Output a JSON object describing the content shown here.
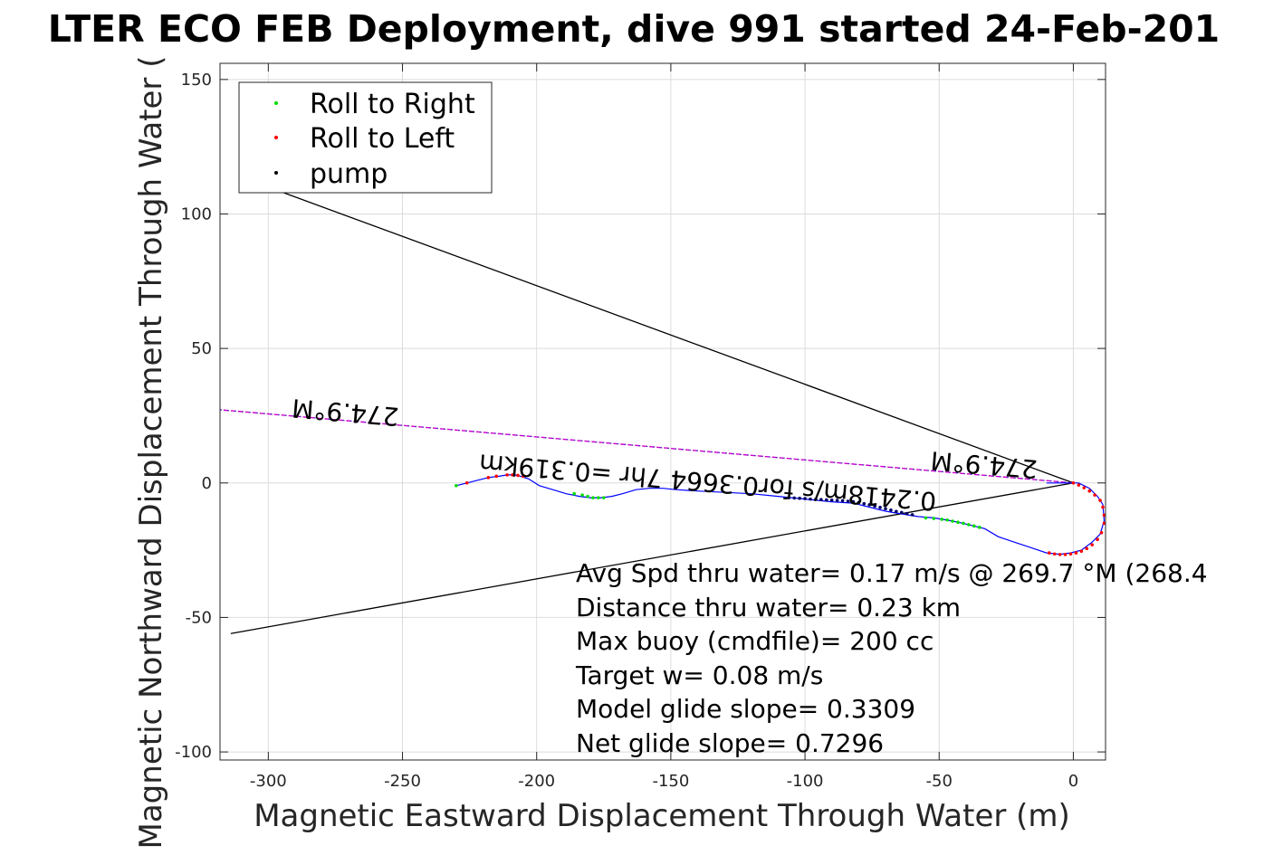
{
  "chart_data": {
    "type": "line",
    "title": "LTER ECO FEB Deployment, dive 991 started 24-Feb-201",
    "xlabel": "Magnetic Eastward Displacement Through Water (m)",
    "ylabel": "Magnetic Northward Displacement Through Water (",
    "xlim": [
      -318,
      12
    ],
    "ylim": [
      -103,
      156
    ],
    "xticks": [
      -300,
      -250,
      -200,
      -150,
      -100,
      -50,
      0
    ],
    "yticks": [
      150,
      100,
      50,
      0,
      -50,
      -100
    ],
    "xtick_labels": [
      "-300",
      "-250",
      "-200",
      "-150",
      "-100",
      "-50",
      "0"
    ],
    "ytick_labels": [
      "150",
      "100",
      "50",
      "0",
      "-50",
      "-100"
    ],
    "grid": true,
    "legend_position": "top-left",
    "legend": [
      {
        "label": "Roll to Right",
        "color": "#00dd00"
      },
      {
        "label": "Roll to Left",
        "color": "#ff0000"
      },
      {
        "label": "pump",
        "color": "#000000"
      }
    ],
    "track": {
      "name": "glider track",
      "color": "#0000ff",
      "x": [
        -230,
        -226,
        -222,
        -218,
        -214,
        -211,
        -208,
        -206,
        -203,
        -199,
        -194,
        -189,
        -184,
        -180,
        -176,
        -172,
        -168,
        -163,
        -158,
        -153,
        -148,
        -140,
        -130,
        -120,
        -110,
        -100,
        -90,
        -82,
        -76,
        -70,
        -64,
        -58,
        -52,
        -46,
        -41,
        -37,
        -33,
        -28,
        -22,
        -16,
        -10,
        -5,
        -1,
        3,
        7,
        10,
        11.5,
        11,
        9,
        6,
        2,
        -2,
        -6,
        -10
      ],
      "y": [
        -1,
        0,
        1,
        2,
        2.5,
        3,
        3,
        2.5,
        1.5,
        -1,
        -2.5,
        -4,
        -5,
        -5.5,
        -5.5,
        -5,
        -4,
        -2.5,
        -2,
        -2,
        -2.5,
        -3,
        -3.5,
        -4,
        -5,
        -6,
        -7,
        -7.5,
        -9,
        -10.5,
        -11.5,
        -12.5,
        -13,
        -14,
        -15,
        -16,
        -17,
        -20,
        -22,
        -24,
        -26,
        -26.5,
        -26,
        -25,
        -22,
        -19,
        -14,
        -8,
        -5,
        -2,
        0,
        0,
        0,
        0
      ]
    },
    "roll_right": {
      "color": "#00dd00",
      "x": [
        -230,
        -186,
        -183,
        -181,
        -179,
        -177,
        -175,
        -55,
        -52,
        -49,
        -47,
        -45,
        -43,
        -41,
        -39,
        -37,
        -35
      ],
      "y": [
        -1,
        -4,
        -4.5,
        -5,
        -5.5,
        -5.5,
        -5.5,
        -13,
        -13.2,
        -13.5,
        -13.8,
        -14.2,
        -14.6,
        -15,
        -15.5,
        -16,
        -16.5
      ]
    },
    "roll_left": {
      "color": "#ff0000",
      "x": [
        -226,
        -218,
        -215,
        -211,
        -209,
        -207,
        -205,
        -9,
        -7,
        -5,
        -3,
        -1,
        1,
        3,
        5,
        7,
        9,
        10.5,
        11.5,
        11.5,
        11,
        10,
        8,
        6,
        4,
        2,
        0
      ],
      "y": [
        0,
        2,
        2.5,
        3,
        3,
        2.8,
        2.5,
        -26,
        -26.4,
        -26.6,
        -26.6,
        -26.4,
        -26,
        -25.4,
        -24.4,
        -23,
        -21,
        -18.5,
        -15,
        -12,
        -9,
        -6.5,
        -4.5,
        -3,
        -1.8,
        -0.8,
        0
      ]
    },
    "pump": {
      "color": "#000066",
      "x": [
        -106,
        -104,
        -102,
        -100,
        -98,
        -96,
        -94,
        -92,
        -90,
        -88,
        -86,
        -84,
        -82,
        -80,
        -78,
        -76,
        -74,
        -72,
        -70,
        -68,
        -66,
        -64,
        -62,
        -60
      ],
      "y": [
        -5.5,
        -5.6,
        -5.7,
        -5.8,
        -6,
        -6.1,
        -6.2,
        -6.3,
        -6.4,
        -6.5,
        -6.6,
        -6.8,
        -7,
        -7.3,
        -7.7,
        -8.1,
        -8.6,
        -9.1,
        -9.6,
        -10.1,
        -10.6,
        -11,
        -11.4,
        -11.8
      ]
    },
    "heading_line": {
      "color": "#cc00cc",
      "x": [
        0,
        -318
      ],
      "y": [
        0,
        27.2
      ]
    },
    "cone_lines": [
      {
        "color": "#000000",
        "x": [
          0,
          -300
        ],
        "y": [
          0,
          110
        ]
      },
      {
        "color": "#000000",
        "x": [
          0,
          -314
        ],
        "y": [
          0,
          -56
        ]
      }
    ],
    "rotated_labels": [
      {
        "text": "274.9°M",
        "x": -271,
        "y": 29.5
      },
      {
        "text": "274.9°M",
        "x": -33,
        "y": 10
      },
      {
        "text": "0.2418m/s for0.3664 7hr =0.319km",
        "x": -136,
        "y": 3.5
      }
    ],
    "annotations": [
      "Avg Spd thru water=  0.17 m/s @ 269.7 °M (268.4",
      "Distance thru water=  0.23 km",
      "Max buoy (cmdfile)= 200 cc",
      "Target w= 0.08 m/s",
      "Model glide slope= 0.3309",
      "Net glide slope= 0.7296"
    ]
  }
}
